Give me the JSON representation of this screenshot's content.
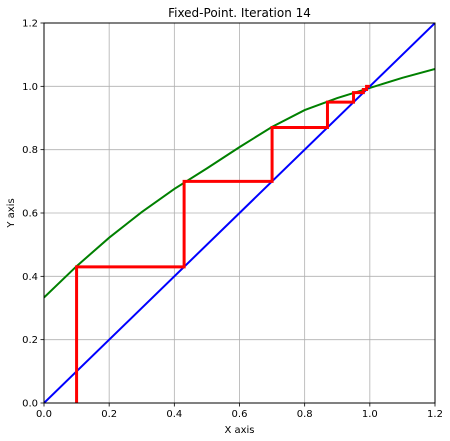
{
  "chart_data": {
    "type": "line",
    "title": "Fixed-Point. Iteration 14",
    "xlabel": "X axis",
    "ylabel": "Y axis",
    "xlim": [
      0,
      1.2
    ],
    "ylim": [
      0,
      1.2
    ],
    "grid": true,
    "x_ticks": [
      "0.0",
      "0.2",
      "0.4",
      "0.6",
      "0.8",
      "1.0",
      "1.2"
    ],
    "y_ticks": [
      "0.0",
      "0.2",
      "0.4",
      "0.6",
      "0.8",
      "1.0",
      "1.2"
    ],
    "series": [
      {
        "color": "#008000",
        "x": [
          0.0,
          0.1,
          0.2,
          0.3,
          0.4,
          0.5,
          0.6,
          0.7,
          0.8,
          0.9,
          1.0,
          1.1,
          1.2
        ],
        "y": [
          0.333,
          0.432,
          0.522,
          0.603,
          0.676,
          0.741,
          0.808,
          0.872,
          0.925,
          0.963,
          0.995,
          1.027,
          1.055
        ]
      },
      {
        "color": "#0000ff",
        "x": [
          0.0,
          1.2
        ],
        "y": [
          0.0,
          1.2
        ]
      },
      {
        "color": "#ff0000",
        "x": [
          0.1,
          0.1,
          0.43,
          0.43,
          0.7,
          0.7,
          0.87,
          0.87,
          0.95,
          0.95,
          0.98,
          0.98,
          0.99,
          0.99,
          1.0
        ],
        "y": [
          0.0,
          0.43,
          0.43,
          0.7,
          0.7,
          0.87,
          0.87,
          0.95,
          0.95,
          0.98,
          0.98,
          0.99,
          0.99,
          1.0,
          1.0
        ]
      }
    ]
  }
}
